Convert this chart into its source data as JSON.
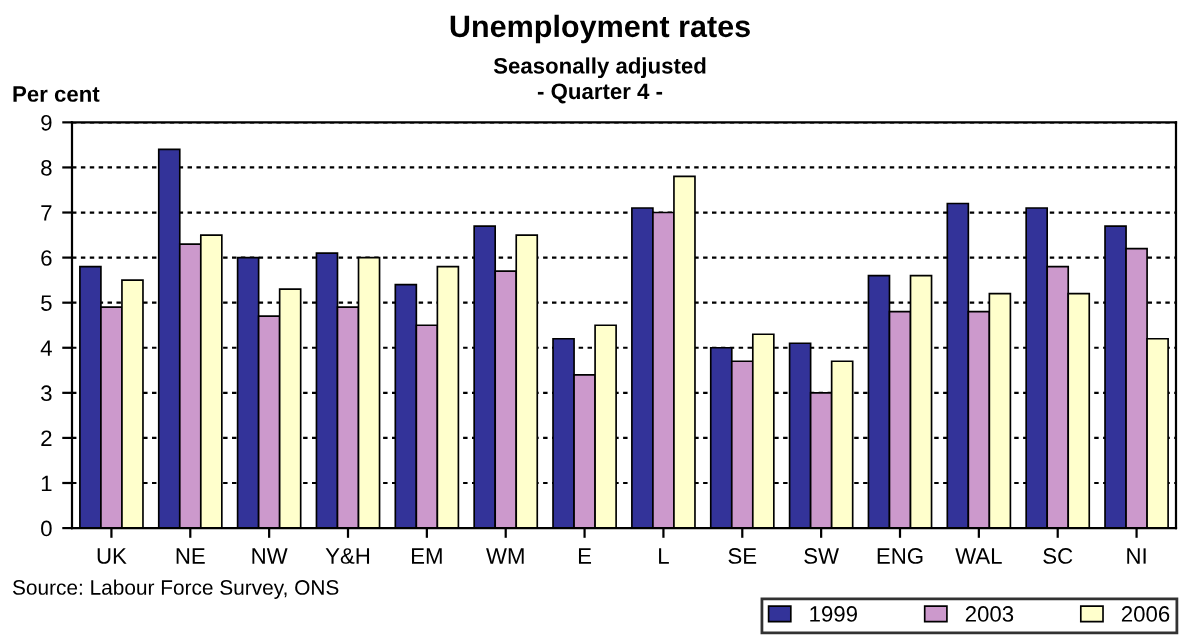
{
  "chart_data": {
    "type": "bar",
    "title": "Unemployment rates",
    "subtitle": "Seasonally adjusted\n- Quarter 4 -",
    "ylabel": "Per cent",
    "categories": [
      "UK",
      "NE",
      "NW",
      "Y&H",
      "EM",
      "WM",
      "E",
      "L",
      "SE",
      "SW",
      "ENG",
      "WAL",
      "SC",
      "NI"
    ],
    "series": [
      {
        "name": "1999",
        "color": "#333399",
        "values": [
          5.8,
          8.4,
          6.0,
          6.1,
          5.4,
          6.7,
          4.2,
          7.1,
          4.0,
          4.1,
          5.6,
          7.2,
          7.1,
          6.7
        ]
      },
      {
        "name": "2003",
        "color": "#cc99cc",
        "values": [
          4.9,
          6.3,
          4.7,
          4.9,
          4.5,
          5.7,
          3.4,
          7.0,
          3.7,
          3.0,
          4.8,
          4.8,
          5.8,
          6.2
        ]
      },
      {
        "name": "2006",
        "color": "#ffffcc",
        "values": [
          5.5,
          6.5,
          5.3,
          6.0,
          5.8,
          6.5,
          4.5,
          7.8,
          4.3,
          3.7,
          5.6,
          5.2,
          5.2,
          4.2
        ]
      }
    ],
    "ylim": [
      0,
      9
    ],
    "yticks": [
      0,
      1,
      2,
      3,
      4,
      5,
      6,
      7,
      8,
      9
    ],
    "grid": "y",
    "legend": "bottom right",
    "annotations": [
      "Source: Labour Force Survey, ONS"
    ]
  }
}
